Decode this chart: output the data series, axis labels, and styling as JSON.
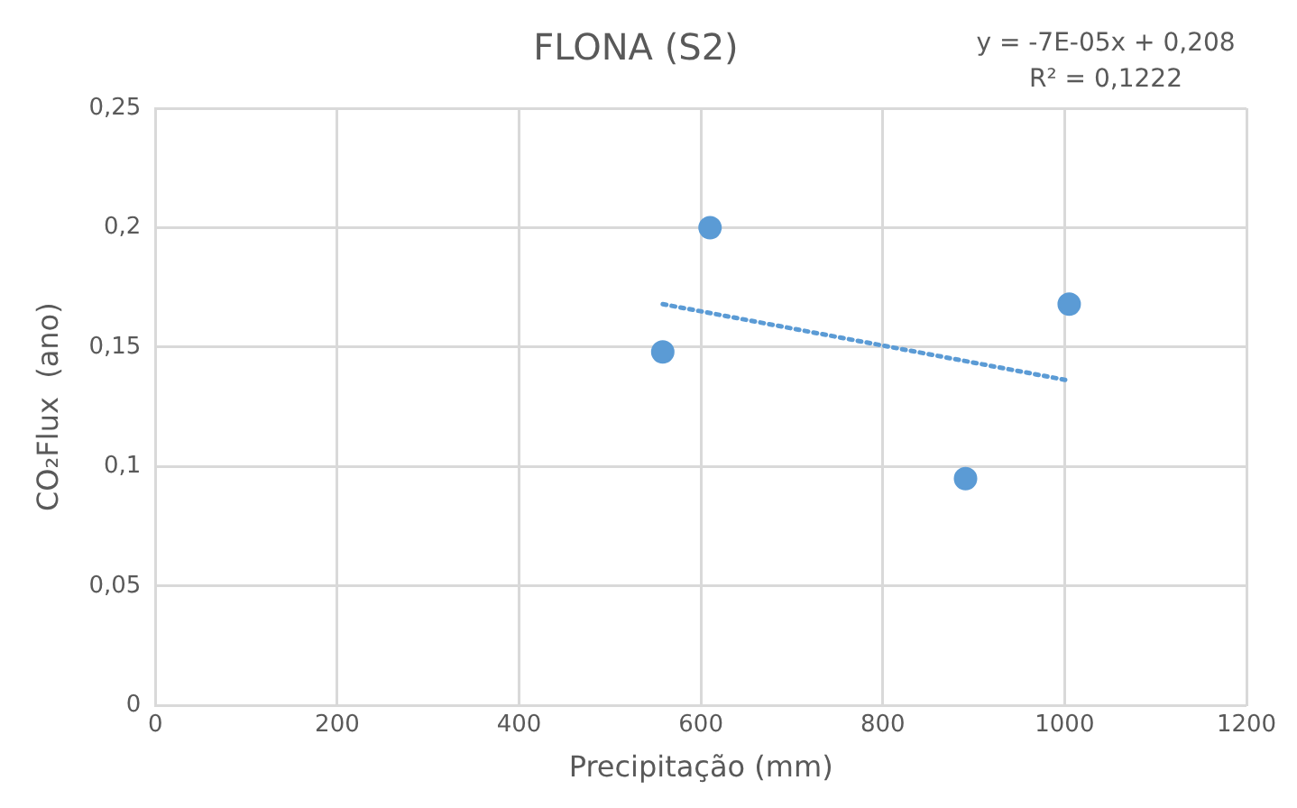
{
  "chart_data": {
    "type": "scatter",
    "title": "FLONA (S2)",
    "xlabel": "Precipitação (mm)",
    "ylabel": "CO₂Flux  (ano)",
    "annotations": [
      "y = -7E-05x + 0,208",
      "R² = 0,1222"
    ],
    "series": [
      {
        "type": "scatter",
        "color": "#5b9bd5",
        "x": [
          558,
          610,
          891,
          1005
        ],
        "values": [
          0.148,
          0.2,
          0.095,
          0.168
        ],
        "marker": "circle"
      },
      {
        "type": "line",
        "color": "#5b9bd5",
        "x": [
          558,
          1005
        ],
        "values": [
          0.168,
          0.136
        ],
        "line_style": "dotted",
        "marker": "none"
      }
    ],
    "xlim": [
      0,
      1200
    ],
    "xticks": [
      0,
      200,
      400,
      600,
      800,
      1000,
      1200
    ],
    "ylim": [
      0,
      0.25
    ],
    "yticks": [
      {
        "value": 0,
        "label": "0"
      },
      {
        "value": 0.05,
        "label": "0,05"
      },
      {
        "value": 0.1,
        "label": "0,1"
      },
      {
        "value": 0.15,
        "label": "0,15"
      },
      {
        "value": 0.2,
        "label": "0,2"
      },
      {
        "value": 0.25,
        "label": "0,25"
      }
    ],
    "grid": true,
    "legend": false
  }
}
